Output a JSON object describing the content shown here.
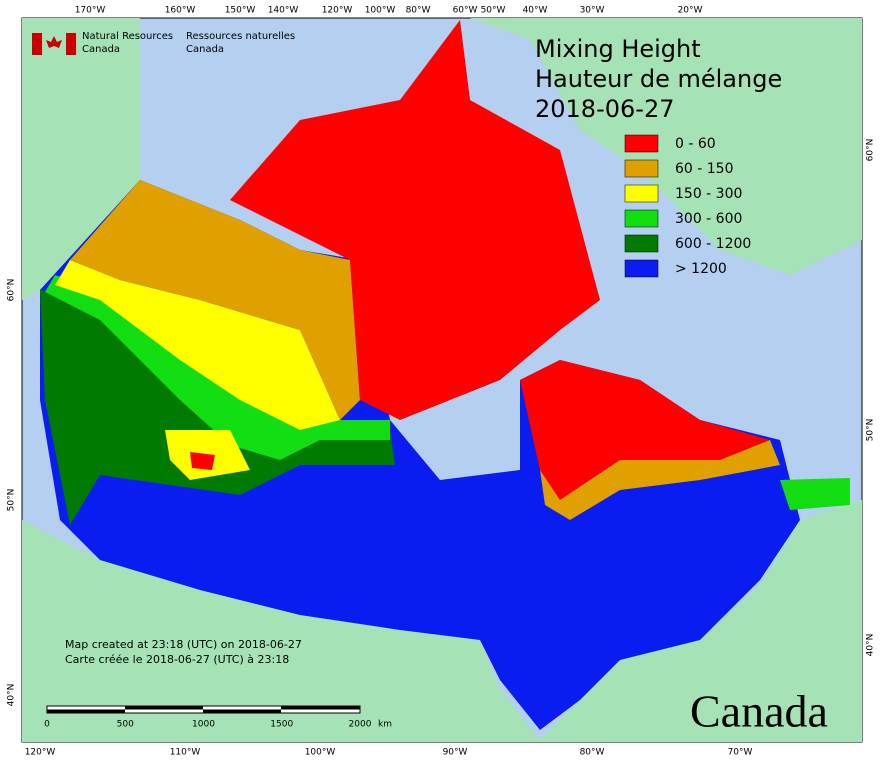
{
  "map": {
    "title": [
      "Mixing Height",
      "Hauteur de mélange",
      "2018-06-27"
    ],
    "agency": {
      "en": [
        "Natural Resources",
        "Canada"
      ],
      "fr": [
        "Ressources naturelles",
        "Canada"
      ]
    },
    "legend": [
      {
        "label": "0 - 60",
        "color": "#ff0000"
      },
      {
        "label": "60 - 150",
        "color": "#dfa000"
      },
      {
        "label": "150 - 300",
        "color": "#ffff00"
      },
      {
        "label": "300 - 600",
        "color": "#11dd11"
      },
      {
        "label": "600 - 1200",
        "color": "#007a00"
      },
      {
        "label": "> 1200",
        "color": "#0a1df0"
      }
    ],
    "longitude_top": [
      "170°W",
      "160°W",
      "150°W",
      "140°W",
      "120°W",
      "100°W",
      "80°W",
      "60°W",
      "50°W",
      "40°W",
      "30°W",
      "20°W"
    ],
    "longitude_bottom": [
      "120°W",
      "110°W",
      "100°W",
      "90°W",
      "80°W",
      "70°W"
    ],
    "latitude_left": [
      "60°N",
      "50°N",
      "40°N"
    ],
    "latitude_right": [
      "60°N",
      "50°N",
      "40°N"
    ],
    "footer": [
      "Map created at 23:18 (UTC) on 2018-06-27",
      "Carte créée le 2018-06-27 (UTC) à 23:18"
    ],
    "scale_bar": {
      "ticks": [
        0,
        500,
        1000,
        1500,
        2000
      ],
      "unit": "km"
    },
    "wordmark": "Canada"
  }
}
